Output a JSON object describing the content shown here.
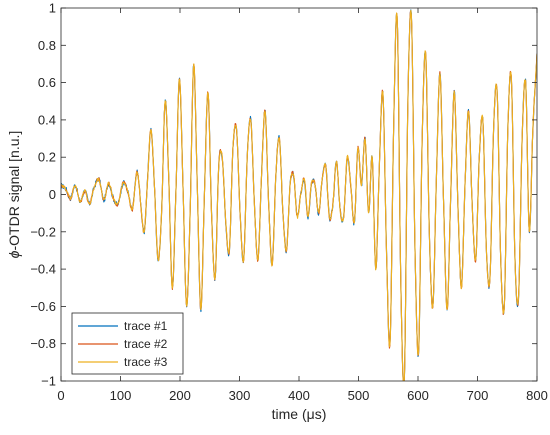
{
  "chart_data": {
    "type": "line",
    "xlabel": "time (μs)",
    "ylabel_prefix": "ϕ",
    "ylabel_rest": "-OTDR signal  [n.u.]",
    "xlim": [
      0,
      800
    ],
    "ylim": [
      -1,
      1
    ],
    "xticks": [
      0,
      100,
      200,
      300,
      400,
      500,
      600,
      700,
      800
    ],
    "yticks": [
      -1,
      -0.8,
      -0.6,
      -0.4,
      -0.2,
      0,
      0.2,
      0.4,
      0.6,
      0.8,
      1
    ],
    "xtick_labels": [
      "0",
      "100",
      "200",
      "300",
      "400",
      "500",
      "600",
      "700",
      "800"
    ],
    "ytick_labels": [
      "−1",
      "−0.8",
      "−0.6",
      "−0.4",
      "−0.2",
      "0",
      "0.2",
      "0.4",
      "0.6",
      "0.8",
      "1"
    ],
    "grid": false,
    "legend_position": "bottom-left",
    "series": [
      {
        "name": "trace #1",
        "color": "#0072BD",
        "noise": 0.013
      },
      {
        "name": "trace #2",
        "color": "#D95319",
        "noise": 0.01
      },
      {
        "name": "trace #3",
        "color": "#EDB120",
        "noise": 0.007
      }
    ],
    "shared_x": [
      0,
      8,
      16,
      24,
      32,
      40,
      48,
      56,
      64,
      72,
      80,
      88,
      96,
      104,
      112,
      120,
      128,
      136,
      140,
      145,
      151,
      157,
      163,
      169,
      175,
      181,
      187,
      193,
      199,
      205,
      211,
      217,
      223,
      229,
      235,
      241,
      247,
      253,
      259,
      265,
      271,
      277,
      283,
      289,
      295,
      301,
      307,
      313,
      319,
      325,
      331,
      337,
      343,
      349,
      355,
      361,
      367,
      373,
      379,
      385,
      391,
      397,
      403,
      409,
      415,
      421,
      427,
      433,
      439,
      445,
      451,
      457,
      463,
      469,
      475,
      481,
      487,
      493,
      499,
      505,
      511,
      517,
      523,
      529,
      535,
      541,
      547,
      553,
      559,
      565,
      571,
      577,
      583,
      589,
      595,
      601,
      607,
      613,
      619,
      625,
      631,
      637,
      643,
      649,
      655,
      661,
      667,
      673,
      679,
      685,
      691,
      697,
      703,
      709,
      715,
      721,
      727,
      733,
      739,
      745,
      751,
      757,
      763,
      769,
      775,
      781,
      787,
      793,
      800
    ],
    "shared_y": [
      0.05,
      0.03,
      -0.02,
      0.05,
      -0.04,
      0.02,
      -0.05,
      0.04,
      0.08,
      -0.03,
      0.06,
      -0.02,
      -0.05,
      0.06,
      0.02,
      -0.08,
      0.12,
      -0.12,
      -0.2,
      0.05,
      0.35,
      0.05,
      -0.35,
      -0.1,
      0.5,
      0.1,
      -0.5,
      0.0,
      0.62,
      0.05,
      -0.6,
      -0.1,
      0.7,
      0.05,
      -0.62,
      0.0,
      0.55,
      -0.1,
      -0.45,
      0.15,
      0.2,
      -0.15,
      -0.3,
      0.25,
      0.35,
      -0.1,
      -0.35,
      0.2,
      0.4,
      -0.05,
      -0.35,
      0.1,
      0.45,
      -0.05,
      -0.38,
      0.1,
      0.3,
      -0.1,
      -0.3,
      0.05,
      0.1,
      -0.12,
      0.0,
      0.08,
      -0.12,
      0.06,
      0.05,
      -0.1,
      0.08,
      0.15,
      -0.12,
      -0.05,
      0.18,
      -0.08,
      -0.12,
      0.2,
      0.05,
      -0.15,
      0.25,
      0.05,
      0.3,
      -0.1,
      0.2,
      -0.4,
      0.15,
      0.55,
      -0.3,
      -0.8,
      0.35,
      0.95,
      -0.45,
      -1.0,
      0.5,
      0.95,
      -0.3,
      -0.85,
      0.3,
      0.75,
      -0.2,
      -0.6,
      0.1,
      0.65,
      -0.05,
      -0.62,
      0.0,
      0.55,
      -0.05,
      -0.5,
      0.05,
      0.45,
      -0.05,
      -0.35,
      0.2,
      0.4,
      -0.3,
      -0.45,
      0.35,
      0.55,
      -0.35,
      -0.6,
      0.35,
      0.62,
      -0.35,
      -0.55,
      0.3,
      0.6,
      -0.2,
      0.35,
      0.75
    ]
  }
}
